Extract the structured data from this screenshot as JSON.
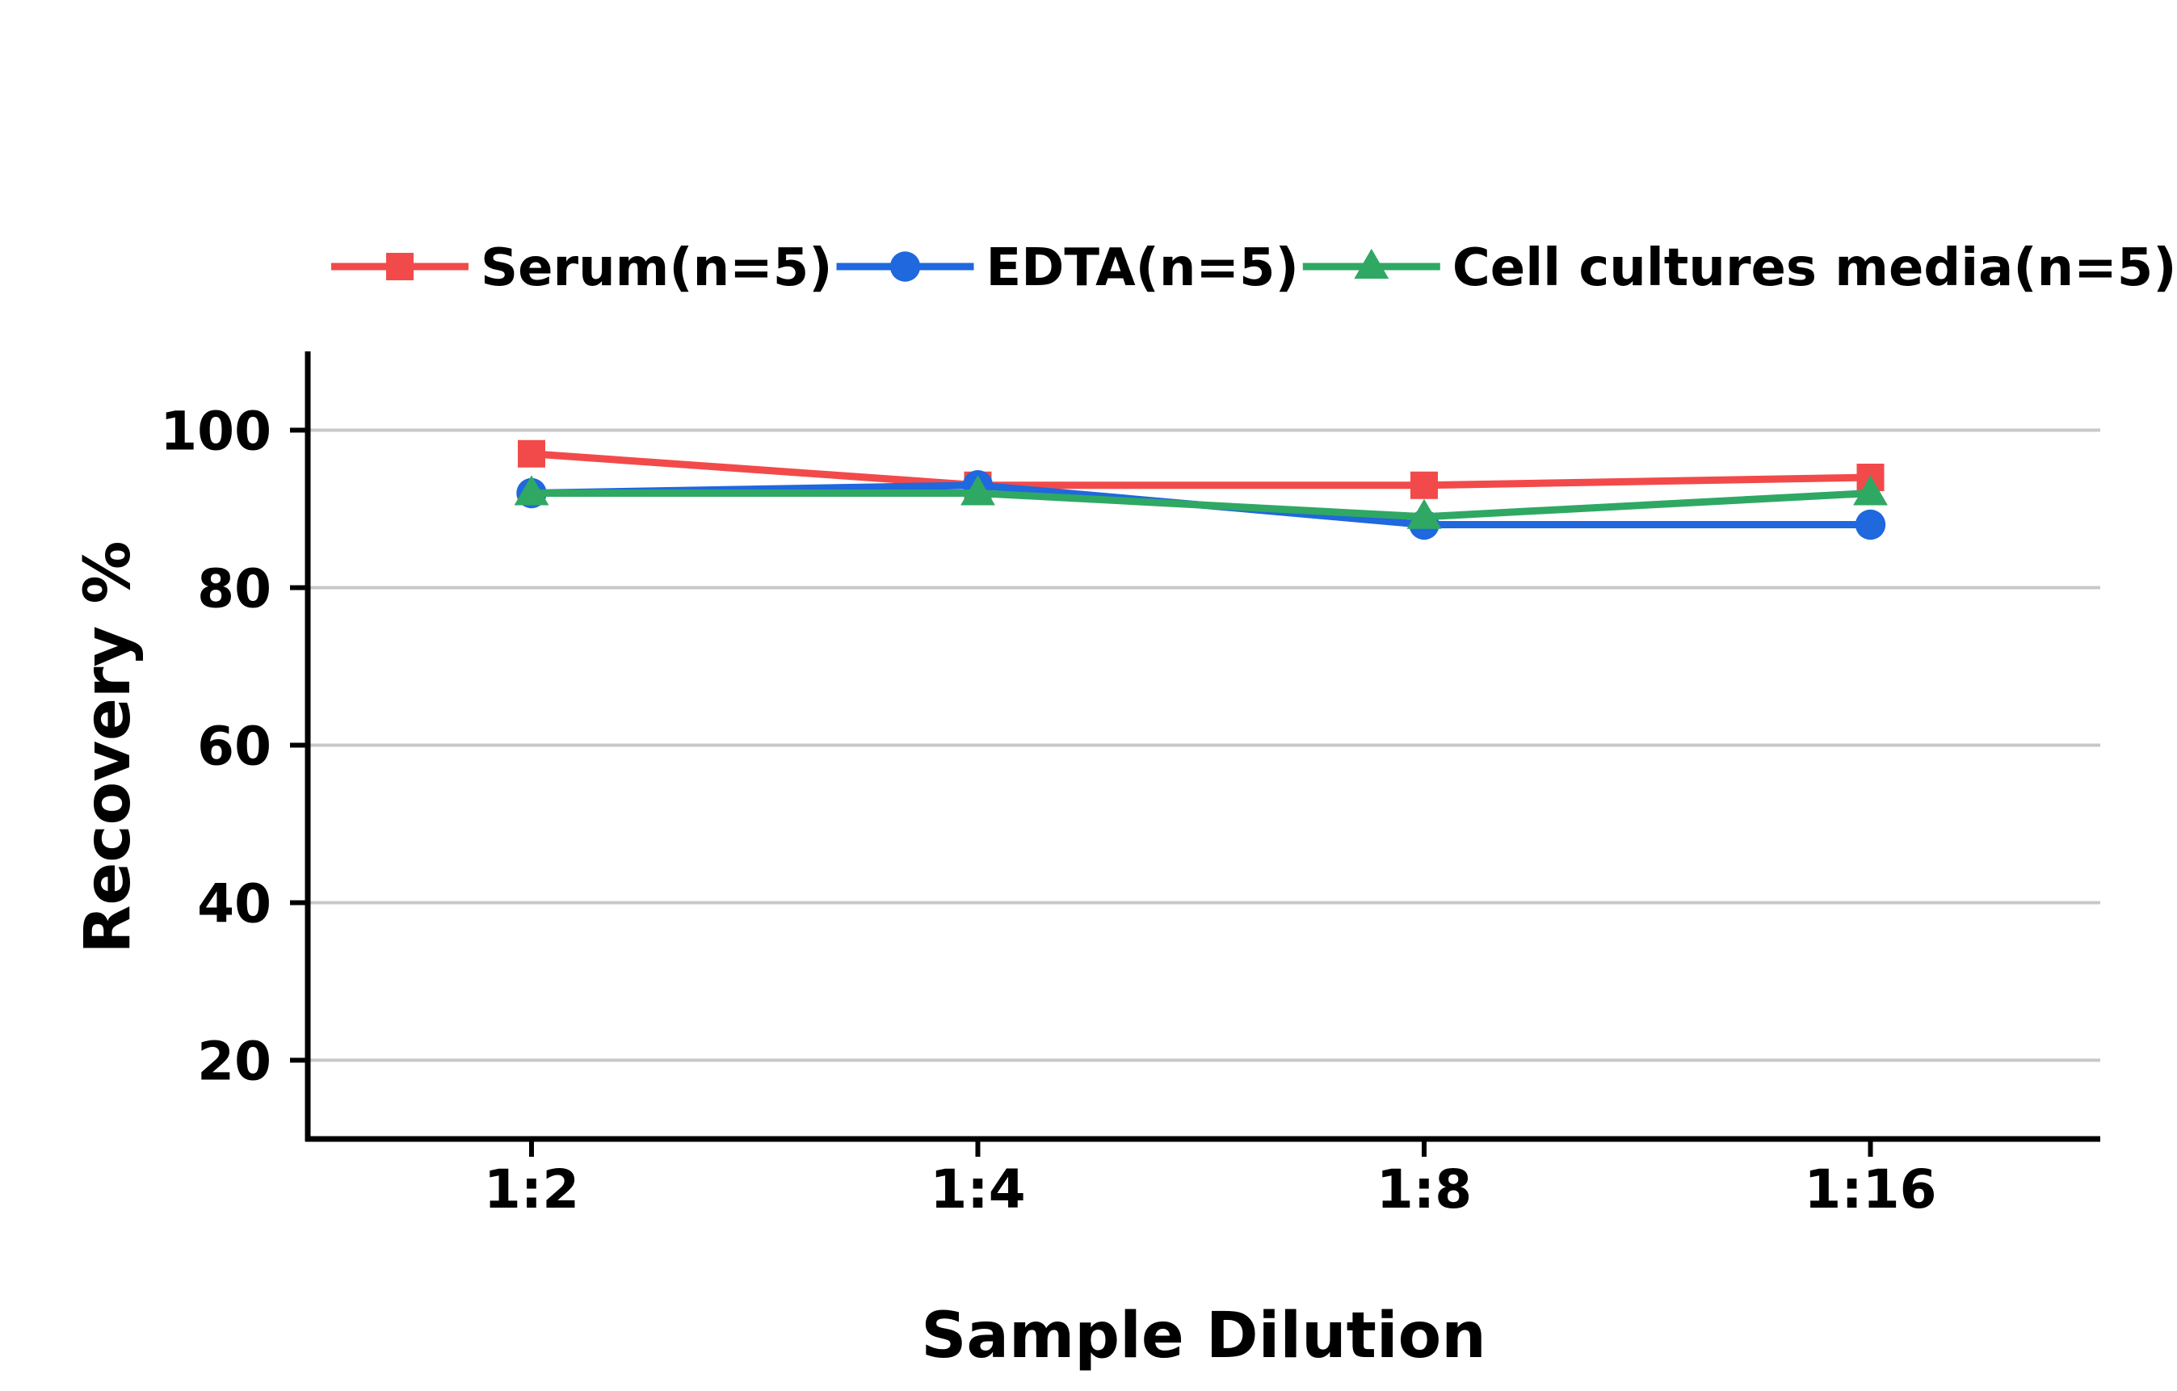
{
  "chart_data": {
    "type": "line",
    "xlabel": "Sample Dilution",
    "ylabel": "Recovery %",
    "categories": [
      "1:2",
      "1:4",
      "1:8",
      "1:16"
    ],
    "ylim": [
      10,
      110
    ],
    "yticks": [
      20,
      40,
      60,
      80,
      100
    ],
    "grid": "horizontal",
    "legend_position": "top",
    "series": [
      {
        "name": "Serum(n=5)",
        "color": "#F24A4A",
        "marker": "square",
        "values": [
          97,
          93,
          93,
          94
        ]
      },
      {
        "name": "EDTA(n=5)",
        "color": "#1F68DD",
        "marker": "circle",
        "values": [
          92,
          93,
          88,
          88
        ]
      },
      {
        "name": "Cell cultures media(n=5)",
        "color": "#2FA864",
        "marker": "triangle",
        "values": [
          92,
          92,
          89,
          92
        ]
      }
    ]
  }
}
